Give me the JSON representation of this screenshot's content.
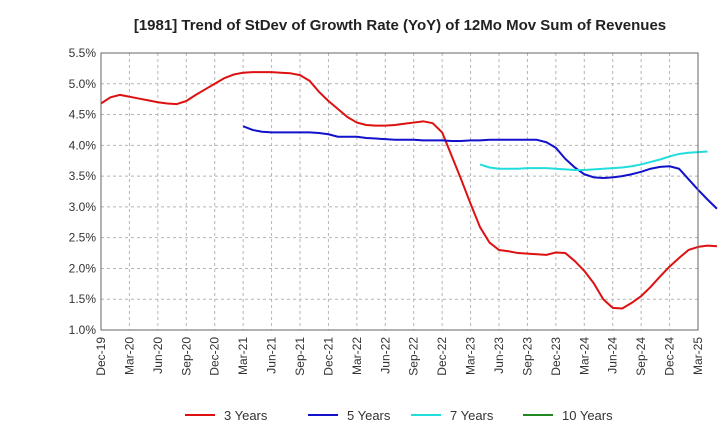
{
  "chart_data": {
    "type": "line",
    "title": "[1981]  Trend of StDev of Growth Rate (YoY) of 12Mo Mov Sum of Revenues",
    "xlabel": "",
    "ylabel": "",
    "x_tick_labels": [
      "Dec-19",
      "Mar-20",
      "Jun-20",
      "Sep-20",
      "Dec-20",
      "Mar-21",
      "Jun-21",
      "Sep-21",
      "Dec-21",
      "Mar-22",
      "Jun-22",
      "Sep-22",
      "Dec-22",
      "Mar-23",
      "Jun-23",
      "Sep-23",
      "Dec-23",
      "Mar-24",
      "Jun-24",
      "Sep-24",
      "Dec-24",
      "Mar-25"
    ],
    "y_tick_labels": [
      "5.5%",
      "5.0%",
      "4.5%",
      "4.0%",
      "3.5%",
      "3.0%",
      "2.5%",
      "2.0%",
      "1.5%",
      "1.0%"
    ],
    "y_tick_values": [
      5.5,
      5.0,
      4.5,
      4.0,
      3.5,
      3.0,
      2.5,
      2.0,
      1.5,
      1.0
    ],
    "ylim": [
      1.0,
      5.5
    ],
    "x_range_months": [
      0,
      63
    ],
    "grid": true,
    "legend_position": "bottom",
    "series": [
      {
        "name": "3 Years",
        "color": "#dd1111",
        "start_month": 0,
        "values": [
          4.68,
          4.78,
          4.82,
          4.79,
          4.76,
          4.73,
          4.7,
          4.68,
          4.67,
          4.72,
          4.82,
          4.91,
          5.0,
          5.09,
          5.15,
          5.18,
          5.19,
          5.19,
          5.19,
          5.18,
          5.17,
          5.14,
          5.05,
          4.87,
          4.72,
          4.59,
          4.46,
          4.37,
          4.33,
          4.32,
          4.32,
          4.33,
          4.35,
          4.37,
          4.39,
          4.36,
          4.21,
          3.83,
          3.45,
          3.05,
          2.67,
          2.42,
          2.3,
          2.28,
          2.25,
          2.24,
          2.23,
          2.22,
          2.26,
          2.25,
          2.12,
          1.96,
          1.76,
          1.5,
          1.36,
          1.35,
          1.44,
          1.55,
          1.7,
          1.87,
          2.03,
          2.17,
          2.3,
          2.35,
          2.37,
          2.36
        ]
      },
      {
        "name": "5 Years",
        "color": "#1111cc",
        "start_month": 15,
        "values": [
          4.31,
          4.25,
          4.22,
          4.21,
          4.21,
          4.21,
          4.21,
          4.21,
          4.2,
          4.18,
          4.14,
          4.14,
          4.14,
          4.12,
          4.11,
          4.1,
          4.09,
          4.09,
          4.09,
          4.08,
          4.08,
          4.08,
          4.07,
          4.07,
          4.08,
          4.08,
          4.09,
          4.09,
          4.09,
          4.09,
          4.09,
          4.09,
          4.05,
          3.96,
          3.78,
          3.64,
          3.53,
          3.48,
          3.47,
          3.48,
          3.5,
          3.53,
          3.57,
          3.62,
          3.65,
          3.66,
          3.62,
          3.45,
          3.28,
          3.12,
          2.97
        ]
      },
      {
        "name": "7 Years",
        "color": "#22dddd",
        "start_month": 40,
        "values": [
          3.69,
          3.64,
          3.62,
          3.62,
          3.62,
          3.63,
          3.63,
          3.63,
          3.62,
          3.61,
          3.6,
          3.6,
          3.61,
          3.62,
          3.63,
          3.64,
          3.66,
          3.69,
          3.73,
          3.77,
          3.82,
          3.86,
          3.88,
          3.89,
          3.9
        ]
      },
      {
        "name": "10 Years",
        "color": "#228822",
        "start_month": 0,
        "values": []
      }
    ]
  }
}
